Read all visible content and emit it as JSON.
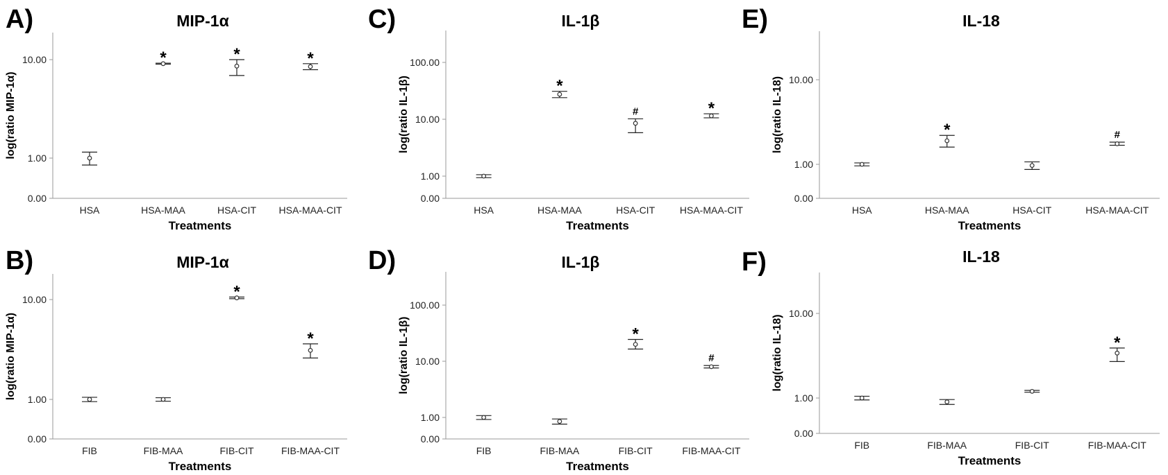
{
  "chart_data": [
    {
      "panel": "A)",
      "type": "scatter",
      "title": "MIP-1α",
      "xlabel": "Treatments",
      "ylabel": "log(ratio MIP-1α)",
      "categories": [
        "HSA",
        "HSA-MAA",
        "HSA-CIT",
        "HSA-MAA-CIT"
      ],
      "values": [
        1.0,
        9.1,
        8.6,
        8.5
      ],
      "error_low": [
        0.85,
        9.0,
        6.9,
        7.9
      ],
      "error_high": [
        1.15,
        9.2,
        10.0,
        9.1
      ],
      "annotations": [
        "",
        "*",
        "*",
        "*"
      ],
      "yticks": [
        0.0,
        1.0,
        10.0
      ],
      "ytick_labels": [
        "0.00",
        "1.00",
        "10.00"
      ],
      "ylim": [
        0,
        18
      ],
      "yscale": "log"
    },
    {
      "panel": "B)",
      "type": "scatter",
      "title": "MIP-1α",
      "xlabel": "Treatments",
      "ylabel": "log(ratio MIP-1α)",
      "categories": [
        "FIB",
        "FIB-MAA",
        "FIB-CIT",
        "FIB-MAA-CIT"
      ],
      "values": [
        1.0,
        1.0,
        10.4,
        3.1
      ],
      "error_low": [
        0.95,
        0.96,
        10.2,
        2.6
      ],
      "error_high": [
        1.05,
        1.04,
        10.6,
        3.6
      ],
      "annotations": [
        "",
        "",
        "*",
        "*"
      ],
      "yticks": [
        0.0,
        1.0,
        10.0
      ],
      "ytick_labels": [
        "0.00",
        "1.00",
        "10.00"
      ],
      "ylim": [
        0,
        18
      ],
      "yscale": "log"
    },
    {
      "panel": "C)",
      "type": "scatter",
      "title": "IL-1β",
      "xlabel": "Treatments",
      "ylabel": "log(ratio IL-1β)",
      "categories": [
        "HSA",
        "HSA-MAA",
        "HSA-CIT",
        "HSA-MAA-CIT"
      ],
      "values": [
        1.0,
        27.5,
        8.5,
        11.5
      ],
      "error_low": [
        0.94,
        24.0,
        5.8,
        10.6
      ],
      "error_high": [
        1.06,
        31.0,
        10.2,
        12.5
      ],
      "annotations": [
        "",
        "*",
        "#",
        "*"
      ],
      "yticks": [
        0.0,
        1.0,
        10.0,
        100.0
      ],
      "ytick_labels": [
        "0.00",
        "1.00",
        "10.00",
        "100.00"
      ],
      "ylim": [
        0,
        160
      ],
      "yscale": "log"
    },
    {
      "panel": "D)",
      "type": "scatter",
      "title": "IL-1β",
      "xlabel": "Treatments",
      "ylabel": "log(ratio IL-1β)",
      "categories": [
        "FIB",
        "FIB-MAA",
        "FIB-CIT",
        "FIB-MAA-CIT"
      ],
      "values": [
        1.0,
        0.85,
        20.0,
        8.0
      ],
      "error_low": [
        0.92,
        0.76,
        16.5,
        7.6
      ],
      "error_high": [
        1.08,
        0.94,
        24.5,
        8.4
      ],
      "annotations": [
        "",
        "",
        "*",
        "#"
      ],
      "yticks": [
        0.0,
        1.0,
        10.0,
        100.0
      ],
      "ytick_labels": [
        "0.00",
        "1.00",
        "10.00",
        "100.00"
      ],
      "ylim": [
        0,
        160
      ],
      "yscale": "log"
    },
    {
      "panel": "E)",
      "type": "scatter",
      "title": "IL-18",
      "xlabel": "Treatments",
      "ylabel": "log(ratio IL-18)",
      "categories": [
        "HSA",
        "HSA-MAA",
        "HSA-CIT",
        "HSA-MAA-CIT"
      ],
      "values": [
        1.0,
        1.9,
        0.97,
        1.75
      ],
      "error_low": [
        0.96,
        1.6,
        0.87,
        1.68
      ],
      "error_high": [
        1.04,
        2.2,
        1.07,
        1.83
      ],
      "annotations": [
        "",
        "*",
        "",
        "#"
      ],
      "yticks": [
        0.0,
        1.0,
        10.0
      ],
      "ytick_labels": [
        "0.00",
        "1.00",
        "10.00"
      ],
      "ylim": [
        0,
        40
      ],
      "yscale": "log"
    },
    {
      "panel": "F)",
      "type": "scatter",
      "title": "IL-18",
      "xlabel": "Treatments",
      "ylabel": "log(ratio IL-18)",
      "categories": [
        "FIB",
        "FIB-MAA",
        "FIB-CIT",
        "FIB-MAA-CIT"
      ],
      "values": [
        1.0,
        0.9,
        1.2,
        3.4
      ],
      "error_low": [
        0.95,
        0.84,
        1.17,
        2.7
      ],
      "error_high": [
        1.05,
        0.96,
        1.23,
        3.9
      ],
      "annotations": [
        "",
        "",
        "",
        "*"
      ],
      "yticks": [
        0.0,
        1.0,
        10.0
      ],
      "ytick_labels": [
        "0.00",
        "1.00",
        "10.00"
      ],
      "ylim": [
        0,
        40
      ],
      "yscale": "log"
    }
  ]
}
